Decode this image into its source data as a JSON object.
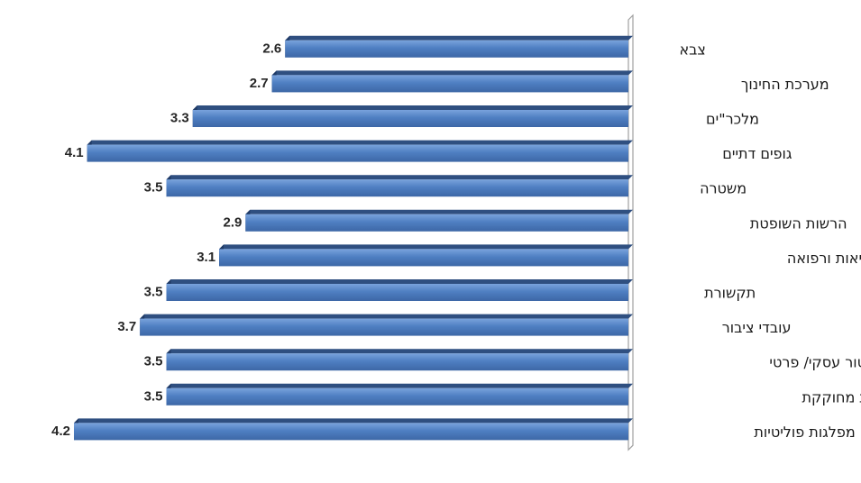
{
  "chart_data": {
    "type": "bar",
    "orientation": "horizontal",
    "direction": "right-to-left",
    "categories": [
      "צבא",
      "מערכת החינוך",
      "מלכר\"ים",
      "גופים דתיים",
      "משטרה",
      "הרשות השופטת",
      "שירותי בריאות ורפואה",
      "תקשורת",
      "עובדי ציבור",
      "סקטור עסקי/ פרטי",
      "פרלמנט/ רשות מחוקקת",
      "מפלגות פוליטיות"
    ],
    "values": [
      2.6,
      2.7,
      3.3,
      4.1,
      3.5,
      2.9,
      3.1,
      3.5,
      3.7,
      3.5,
      3.5,
      4.2
    ],
    "value_labels": [
      "2.6",
      "2.7",
      "3.3",
      "4.1",
      "3.5",
      "2.9",
      "3.1",
      "3.5",
      "3.7",
      "3.5",
      "3.5",
      "4.2"
    ],
    "xlim": [
      0,
      4.2
    ],
    "bar_color": "#4f7fc2",
    "bar_top_color": "#2f4f80",
    "axis_color": "#a0a0a0",
    "grid": false,
    "legend": false
  }
}
